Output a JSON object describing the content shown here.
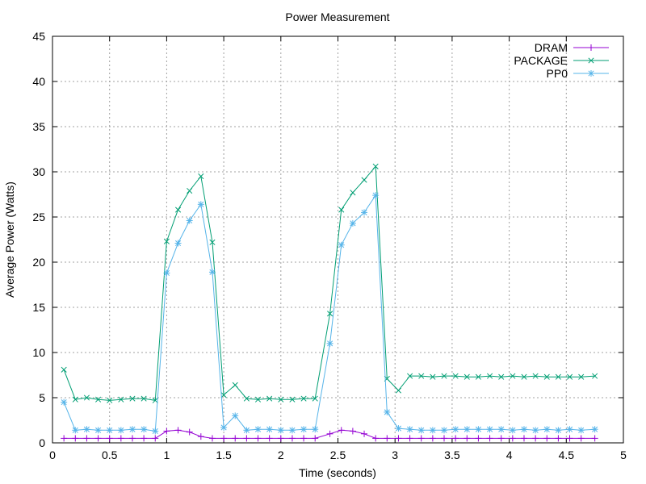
{
  "chart_data": {
    "type": "line",
    "title": "Power Measurement",
    "xlabel": "Time (seconds)",
    "ylabel": "Average Power (Watts)",
    "xlim": [
      0,
      5
    ],
    "ylim": [
      0,
      45
    ],
    "xticks": [
      "0",
      "0.5",
      "1",
      "1.5",
      "2",
      "2.5",
      "3",
      "3.5",
      "4",
      "4.5",
      "5"
    ],
    "yticks": [
      "0",
      "5",
      "10",
      "15",
      "20",
      "25",
      "30",
      "35",
      "40",
      "45"
    ],
    "grid": true,
    "legend_position": "top-right",
    "series": [
      {
        "name": "DRAM",
        "color": "#9400d3",
        "marker": "plus",
        "x": [
          0.1,
          0.2,
          0.3,
          0.4,
          0.5,
          0.6,
          0.7,
          0.8,
          0.9,
          1.0,
          1.1,
          1.2,
          1.3,
          1.4,
          1.5,
          1.6,
          1.7,
          1.8,
          1.9,
          2.0,
          2.1,
          2.2,
          2.3,
          2.43,
          2.53,
          2.63,
          2.73,
          2.83,
          2.93,
          3.03,
          3.13,
          3.23,
          3.33,
          3.43,
          3.53,
          3.63,
          3.73,
          3.83,
          3.93,
          4.03,
          4.13,
          4.23,
          4.33,
          4.43,
          4.53,
          4.63,
          4.75
        ],
        "y": [
          0.5,
          0.5,
          0.5,
          0.5,
          0.5,
          0.5,
          0.5,
          0.5,
          0.5,
          1.3,
          1.4,
          1.2,
          0.7,
          0.5,
          0.5,
          0.5,
          0.5,
          0.5,
          0.5,
          0.5,
          0.5,
          0.5,
          0.5,
          1.0,
          1.4,
          1.3,
          1.0,
          0.5,
          0.5,
          0.5,
          0.5,
          0.5,
          0.5,
          0.5,
          0.5,
          0.5,
          0.5,
          0.5,
          0.5,
          0.5,
          0.5,
          0.5,
          0.5,
          0.5,
          0.5,
          0.5,
          0.5
        ]
      },
      {
        "name": "PACKAGE",
        "color": "#009e73",
        "marker": "x",
        "x": [
          0.1,
          0.2,
          0.3,
          0.4,
          0.5,
          0.6,
          0.7,
          0.8,
          0.9,
          1.0,
          1.1,
          1.2,
          1.3,
          1.4,
          1.5,
          1.6,
          1.7,
          1.8,
          1.9,
          2.0,
          2.1,
          2.2,
          2.3,
          2.43,
          2.53,
          2.63,
          2.73,
          2.83,
          2.93,
          3.03,
          3.13,
          3.23,
          3.33,
          3.43,
          3.53,
          3.63,
          3.73,
          3.83,
          3.93,
          4.03,
          4.13,
          4.23,
          4.33,
          4.43,
          4.53,
          4.63,
          4.75
        ],
        "y": [
          8.1,
          4.8,
          5.0,
          4.8,
          4.7,
          4.8,
          4.9,
          4.9,
          4.7,
          22.3,
          25.8,
          27.9,
          29.5,
          22.2,
          5.3,
          6.4,
          4.9,
          4.8,
          4.9,
          4.8,
          4.8,
          4.9,
          4.9,
          14.3,
          25.8,
          27.7,
          29.1,
          30.6,
          7.1,
          5.8,
          7.4,
          7.4,
          7.3,
          7.4,
          7.4,
          7.3,
          7.3,
          7.4,
          7.3,
          7.4,
          7.3,
          7.4,
          7.3,
          7.3,
          7.3,
          7.3,
          7.4
        ]
      },
      {
        "name": "PP0",
        "color": "#56b4e9",
        "marker": "star",
        "x": [
          0.1,
          0.2,
          0.3,
          0.4,
          0.5,
          0.6,
          0.7,
          0.8,
          0.9,
          1.0,
          1.1,
          1.2,
          1.3,
          1.4,
          1.5,
          1.6,
          1.7,
          1.8,
          1.9,
          2.0,
          2.1,
          2.2,
          2.3,
          2.43,
          2.53,
          2.63,
          2.73,
          2.83,
          2.93,
          3.03,
          3.13,
          3.23,
          3.33,
          3.43,
          3.53,
          3.63,
          3.73,
          3.83,
          3.93,
          4.03,
          4.13,
          4.23,
          4.33,
          4.43,
          4.53,
          4.63,
          4.75
        ],
        "y": [
          4.5,
          1.4,
          1.5,
          1.4,
          1.4,
          1.4,
          1.5,
          1.5,
          1.3,
          18.8,
          22.1,
          24.6,
          26.4,
          18.9,
          1.7,
          3.0,
          1.4,
          1.5,
          1.5,
          1.4,
          1.4,
          1.5,
          1.5,
          11.0,
          21.9,
          24.3,
          25.5,
          27.4,
          3.4,
          1.6,
          1.5,
          1.4,
          1.4,
          1.4,
          1.5,
          1.5,
          1.5,
          1.5,
          1.5,
          1.4,
          1.5,
          1.4,
          1.5,
          1.4,
          1.5,
          1.4,
          1.5
        ]
      }
    ]
  }
}
